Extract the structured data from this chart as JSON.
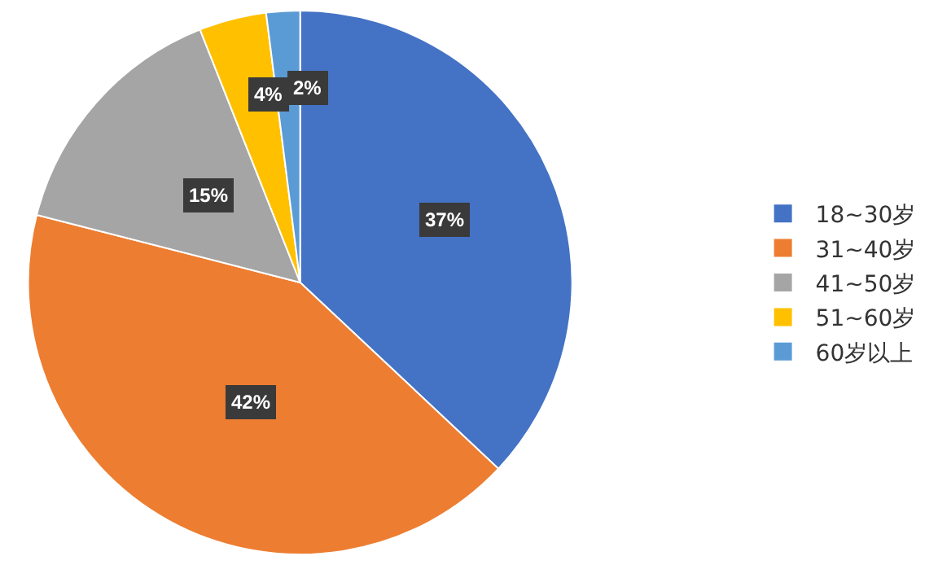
{
  "chart_data": {
    "type": "pie",
    "categories": [
      "18~30岁",
      "31~40岁",
      "41~50岁",
      "51~60岁",
      "60岁以上"
    ],
    "values": [
      37,
      42,
      15,
      4,
      2
    ],
    "colors": [
      "#4472c4",
      "#ed7d31",
      "#a5a5a5",
      "#ffc000",
      "#5b9bd5"
    ],
    "value_labels": [
      "37%",
      "42%",
      "15%",
      "4%",
      "2%"
    ],
    "legend": "right"
  }
}
